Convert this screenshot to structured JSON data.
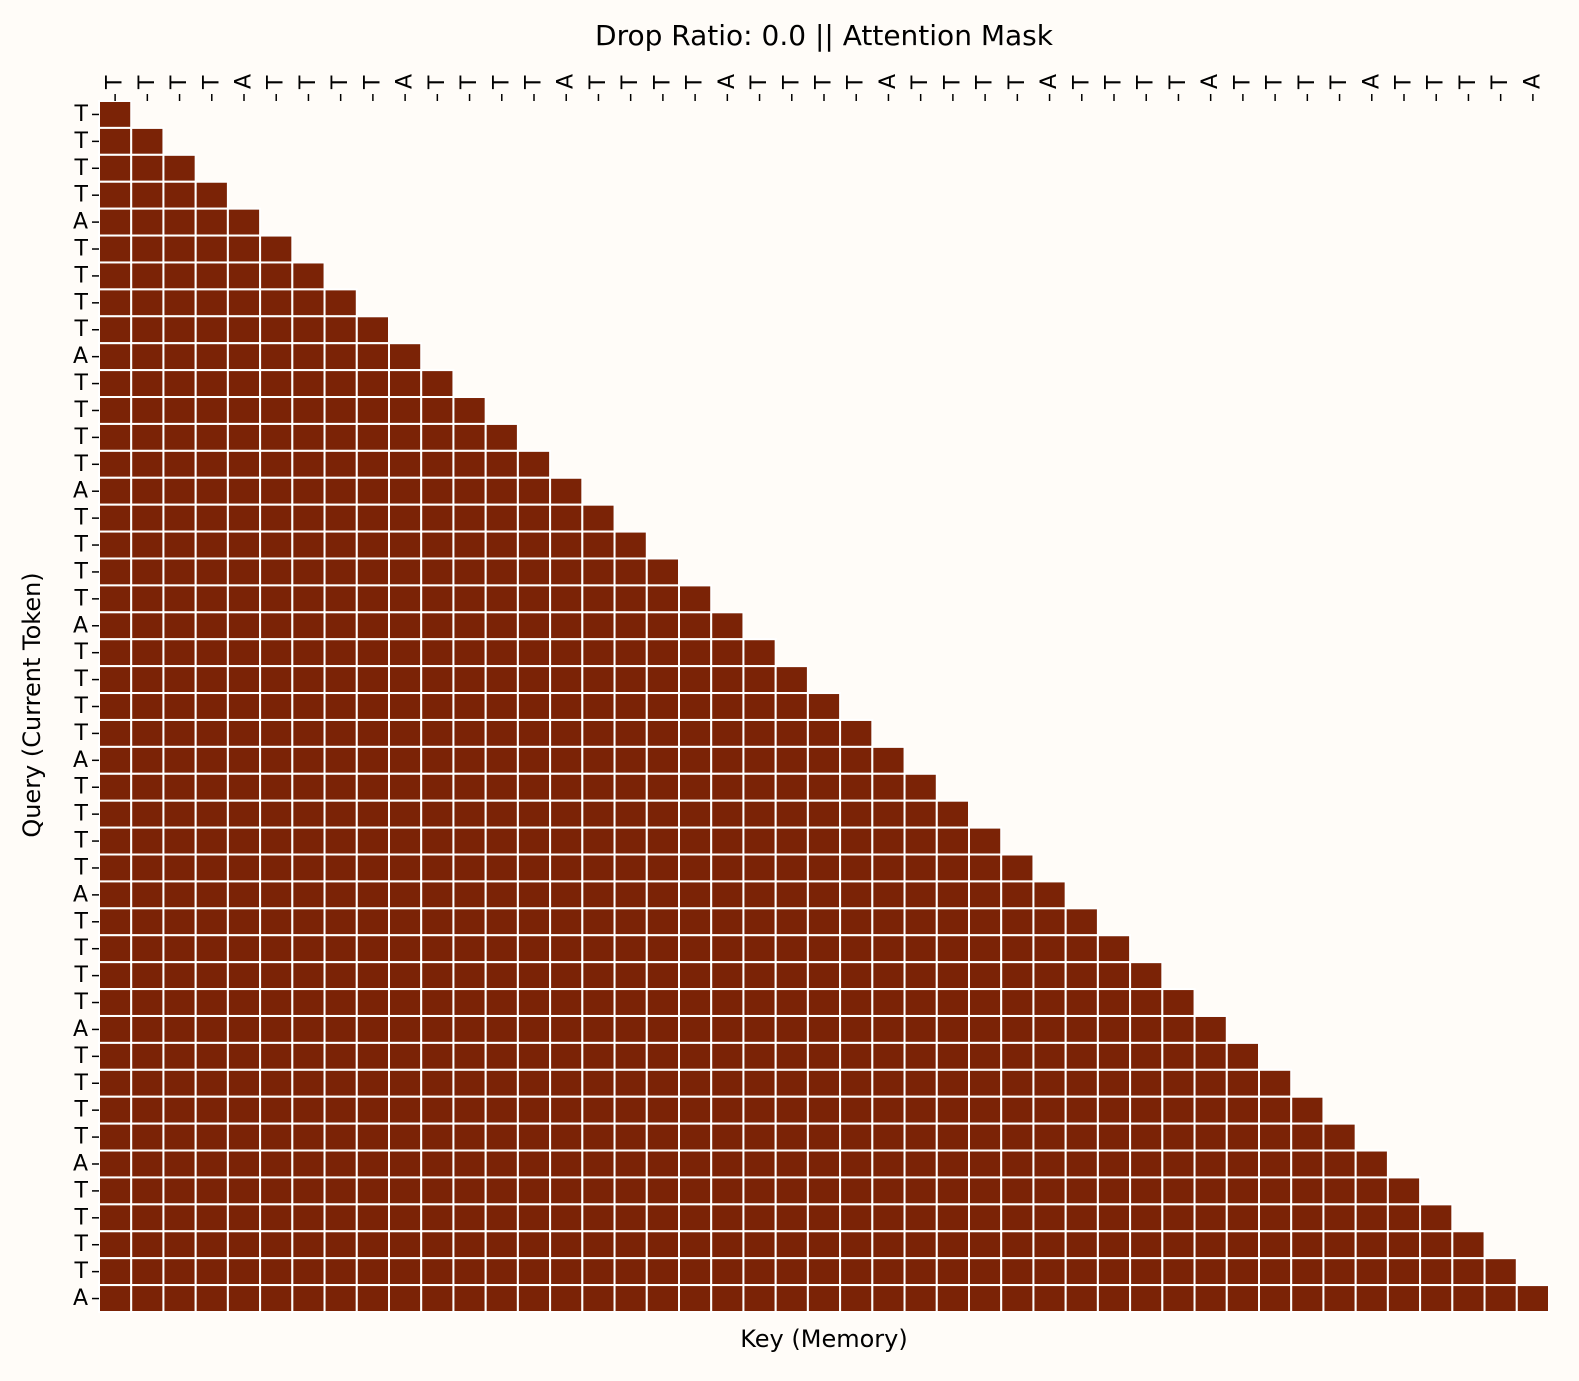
{
  "chart_data": {
    "type": "heatmap",
    "title": "Drop Ratio: 0.0 || Attention Mask",
    "xlabel": "Key (Memory)",
    "ylabel": "Query (Current Token)",
    "tokens": [
      "T",
      "T",
      "T",
      "T",
      "A",
      "T",
      "T",
      "T",
      "T",
      "A",
      "T",
      "T",
      "T",
      "T",
      "A",
      "T",
      "T",
      "T",
      "T",
      "A",
      "T",
      "T",
      "T",
      "T",
      "A",
      "T",
      "T",
      "T",
      "T",
      "A",
      "T",
      "T",
      "T",
      "T",
      "A",
      "T",
      "T",
      "T",
      "T",
      "A",
      "T",
      "T",
      "T",
      "T",
      "A"
    ],
    "mask": "lower-triangular-causal",
    "masked_value": 1,
    "unmasked_value": 0,
    "grid": false,
    "legend": "none",
    "colors": {
      "background": "#fffcf8",
      "cell": "#7b2306",
      "cell_border": "#ffffff"
    }
  }
}
